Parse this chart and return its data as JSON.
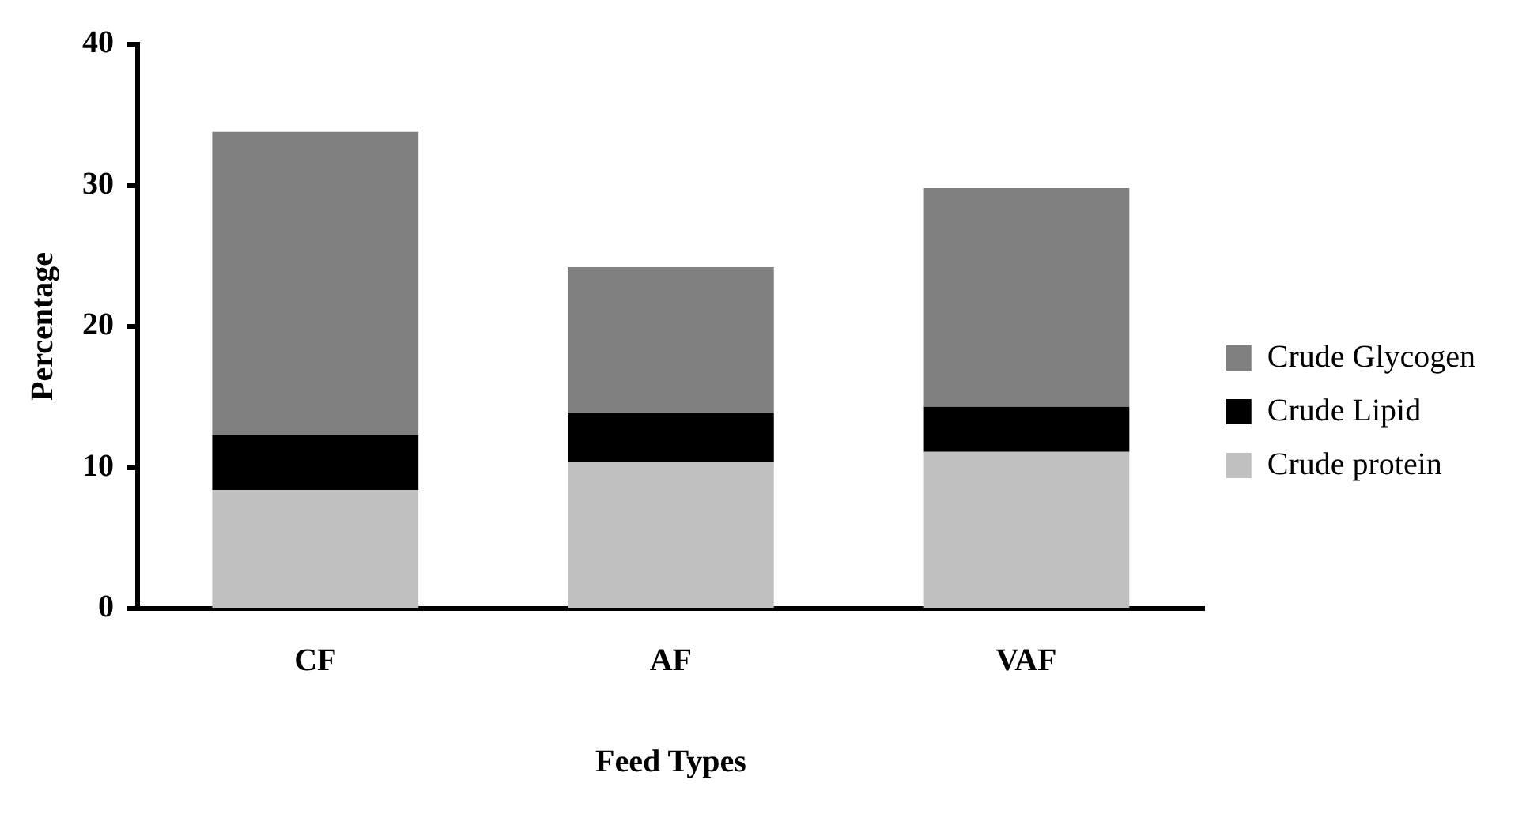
{
  "chart_data": {
    "type": "bar",
    "stacked": true,
    "xlabel": "Feed Types",
    "ylabel": "Percentage",
    "categories": [
      "CF",
      "AF",
      "VAF"
    ],
    "series": [
      {
        "name": "Crude protein",
        "color": "#c0c0c0",
        "values": [
          8.4,
          10.4,
          11.1
        ]
      },
      {
        "name": "Crude Lipid",
        "color": "#000000",
        "values": [
          3.9,
          3.5,
          3.2
        ]
      },
      {
        "name": "Crude Glycogen",
        "color": "#808080",
        "values": [
          21.5,
          10.3,
          15.5
        ]
      }
    ],
    "ylim": [
      0,
      40
    ],
    "yticks": [
      0,
      10,
      20,
      30,
      40
    ],
    "grid": false,
    "legend": "right"
  }
}
